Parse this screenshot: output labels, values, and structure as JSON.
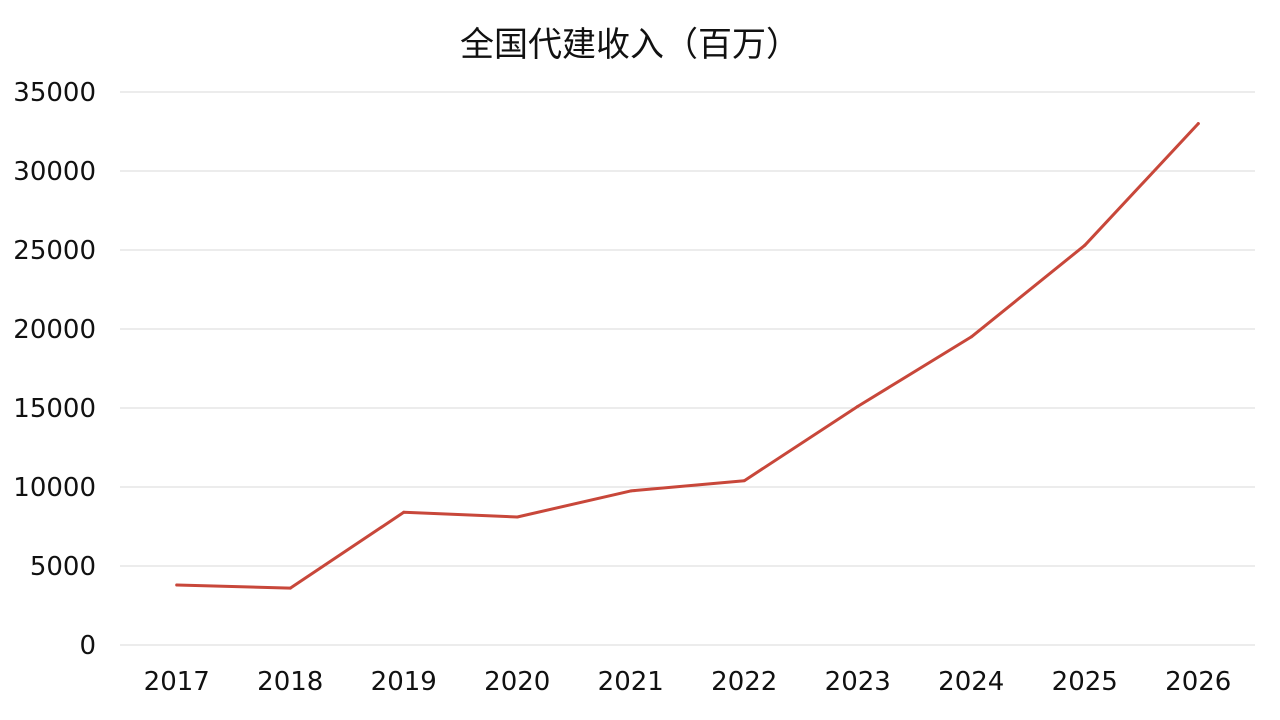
{
  "chart_data": {
    "type": "line",
    "title": "全国代建收入（百万）",
    "xlabel": "",
    "ylabel": "",
    "categories": [
      "2017",
      "2018",
      "2019",
      "2020",
      "2021",
      "2022",
      "2023",
      "2024",
      "2025",
      "2026"
    ],
    "series": [
      {
        "values": [
          3800,
          3600,
          8400,
          8100,
          9750,
          10400,
          15100,
          19500,
          25300,
          33000
        ],
        "color": "#c8473a"
      }
    ],
    "ylim": [
      0,
      35000
    ],
    "yticks": [
      "0",
      "5000",
      "10000",
      "15000",
      "20000",
      "25000",
      "30000",
      "35000"
    ],
    "grid": true,
    "legend": "none"
  }
}
